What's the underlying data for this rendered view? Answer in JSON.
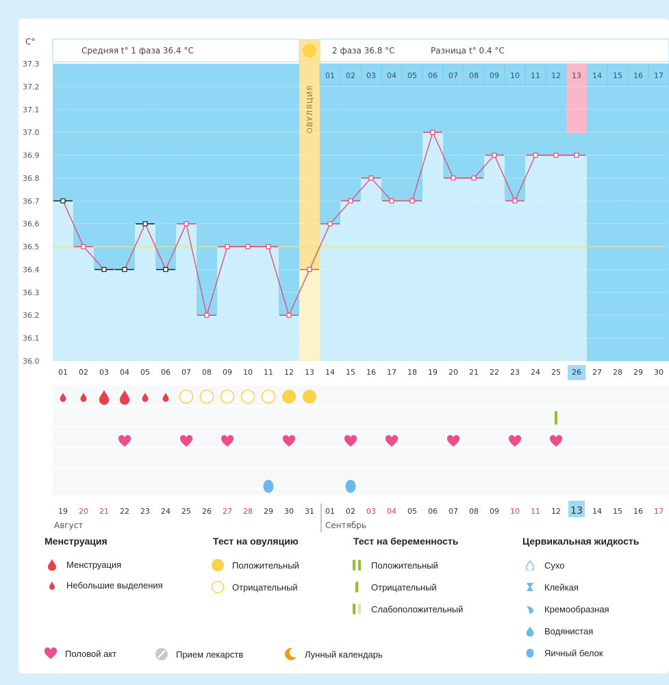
{
  "chart_data": {
    "type": "line",
    "title": "",
    "ylabel": "С°",
    "ylim": [
      36.0,
      37.3
    ],
    "yticks": [
      "37.3",
      "37.2",
      "37.1",
      "37.0",
      "36.9",
      "36.8",
      "36.7",
      "36.6",
      "36.5",
      "36.4",
      "36.3",
      "36.2",
      "36.1",
      "36.0"
    ],
    "phase1_label": "Средняя t° 1 фаза 36.4 °С",
    "phase2_label": "2 фаза 36.8 °С",
    "diff_label": "Разница t° 0.4 °С",
    "ovulation_label": "ОВУЛЯЦИЯ",
    "ovulation_day": 13,
    "cover_line": 36.5,
    "cycle_days": [
      "01",
      "02",
      "03",
      "04",
      "05",
      "06",
      "07",
      "08",
      "09",
      "10",
      "11",
      "12",
      "13",
      "14",
      "15",
      "16",
      "17",
      "18",
      "19",
      "20",
      "21",
      "22",
      "23",
      "24",
      "25",
      "26",
      "27",
      "28",
      "29",
      "30"
    ],
    "today_index": 25,
    "dpo_days": [
      "01",
      "02",
      "03",
      "04",
      "05",
      "06",
      "07",
      "08",
      "09",
      "10",
      "11",
      "12",
      "13",
      "14",
      "15",
      "16",
      "17"
    ],
    "dpo_highlight_index": 12,
    "temperatures": [
      36.7,
      36.5,
      36.4,
      36.4,
      36.6,
      36.4,
      36.6,
      36.2,
      36.5,
      36.5,
      36.5,
      36.2,
      36.4,
      36.6,
      36.7,
      36.8,
      36.7,
      36.7,
      37.0,
      36.8,
      36.8,
      36.9,
      36.7,
      36.9,
      36.9,
      36.9
    ],
    "black_marker_days": [
      1,
      3,
      4,
      5,
      6
    ],
    "menstruation": [
      "small",
      "small",
      "large",
      "large",
      "small",
      "small"
    ],
    "ovulation_tests": [
      "neg",
      "neg",
      "neg",
      "neg",
      "neg",
      "pos",
      "pos"
    ],
    "ovulation_test_start_day": 7,
    "pregnancy_test_days": [
      25
    ],
    "intercourse_days": [
      4,
      7,
      9,
      12,
      15,
      17,
      20,
      23,
      25
    ],
    "egg_white_days": [
      11,
      15
    ],
    "calendar_dates": [
      "19",
      "20",
      "21",
      "22",
      "23",
      "24",
      "25",
      "26",
      "27",
      "28",
      "29",
      "30",
      "31",
      "01",
      "02",
      "03",
      "04",
      "05",
      "06",
      "07",
      "08",
      "09",
      "10",
      "11",
      "12",
      "13",
      "14",
      "15",
      "16",
      "17"
    ],
    "red_date_indices": [
      1,
      2,
      8,
      9,
      15,
      16,
      22,
      23,
      29
    ],
    "highlight_date_index": 25,
    "month1": "Август",
    "month2": "Сентябрь"
  },
  "colors": {
    "sky": "#8fd8f5",
    "bar": "#cdeefc",
    "ovulation": "#fbe39a",
    "ovulation_marker": "#fbd34a",
    "line": "#e8466e",
    "pink_col": "#f9b7c7",
    "heart": "#ec4d8d",
    "drop": "#e8414c",
    "egg_white": "#6ab9ee",
    "green": "#8fc31f",
    "highlight": "#9fd9f3"
  },
  "legend": {
    "menstruation": {
      "title": "Менструация",
      "items": [
        "Менструация",
        "Небольшие выделения"
      ]
    },
    "ovulation_test": {
      "title": "Тест на овуляцию",
      "items": [
        "Положительный",
        "Отрицательный"
      ]
    },
    "pregnancy_test": {
      "title": "Тест на беременность",
      "items": [
        "Положительный",
        "Отрицательный",
        "Слабоположительный"
      ]
    },
    "cervical": {
      "title": "Цервикальная жидкость",
      "items": [
        "Сухо",
        "Клейкая",
        "Кремообразная",
        "Водянистая",
        "Яичный белок"
      ]
    },
    "bottom": [
      "Половой акт",
      "Прием лекарств",
      "Лунный календарь"
    ]
  }
}
